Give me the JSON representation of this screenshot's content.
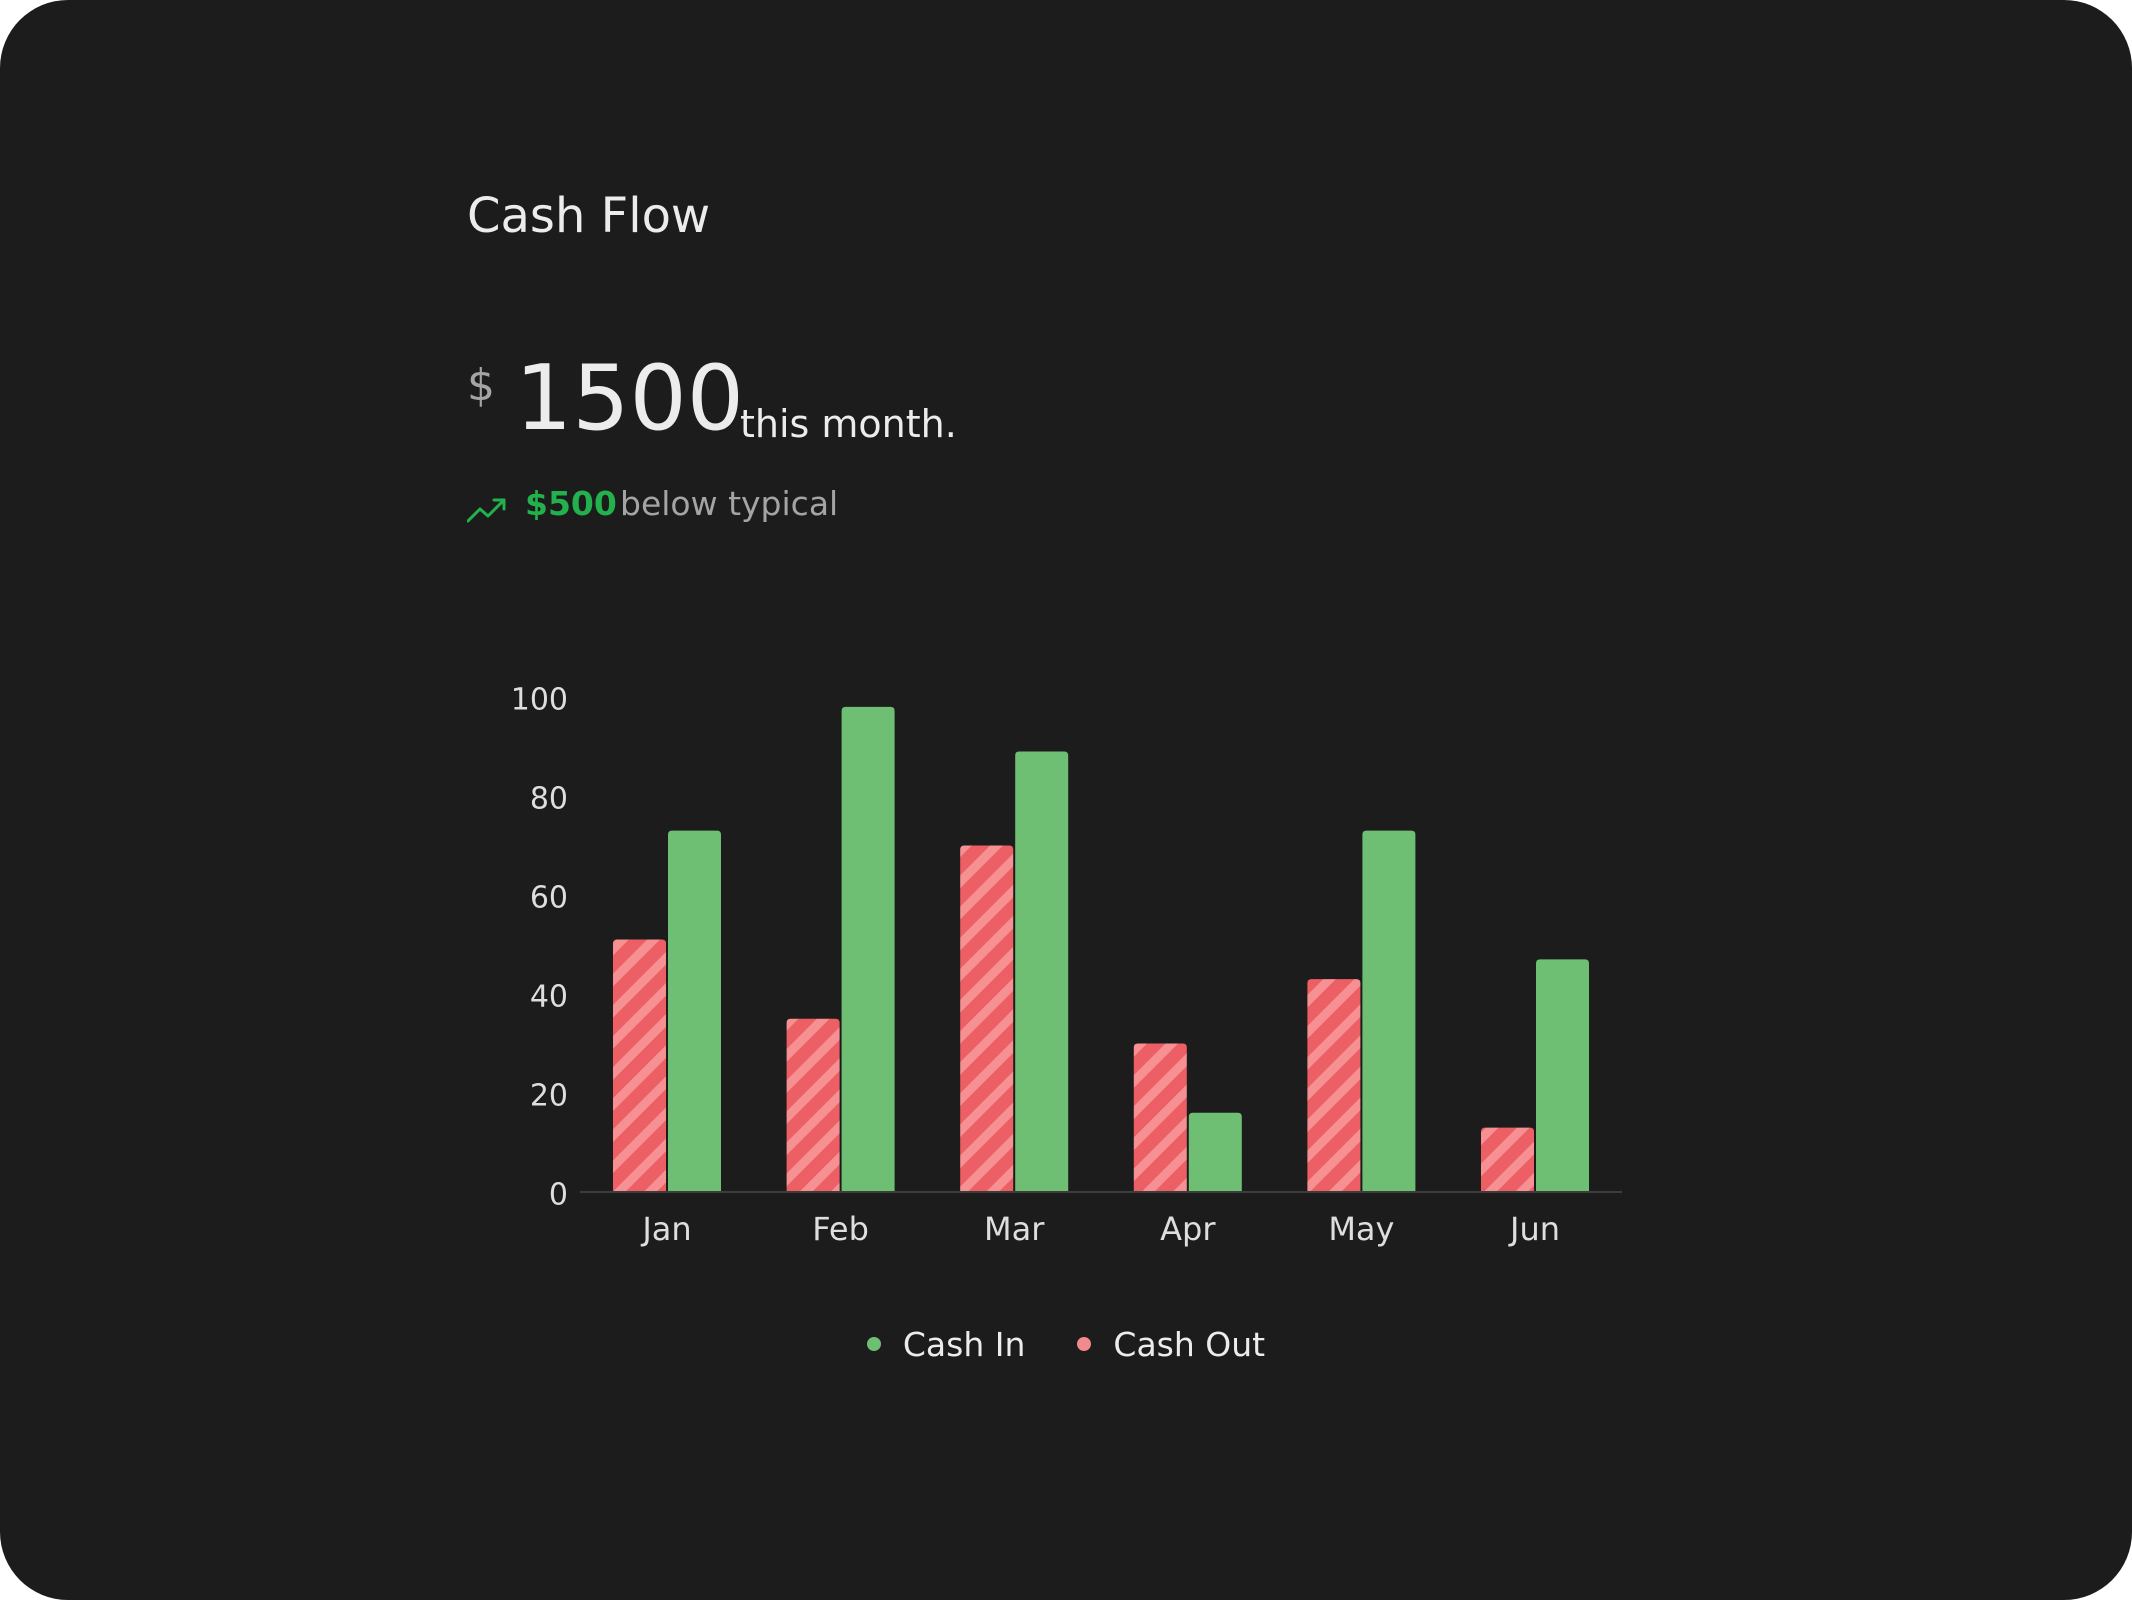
{
  "card": {
    "title": "Cash Flow",
    "currency_symbol": "$",
    "amount": "1500",
    "amount_note": "this month.",
    "delta_value": "$500",
    "delta_note": "below typical",
    "trend_icon": "trending-up-icon"
  },
  "colors": {
    "background": "#1c1c1c",
    "cash_in": "#6ebf74",
    "cash_out": "#eb5f65",
    "cash_out_stripe": "#f79092",
    "positive": "#22b14c",
    "muted_text": "#a4a4a4"
  },
  "chart_data": {
    "type": "bar",
    "categories": [
      "Jan",
      "Feb",
      "Mar",
      "Apr",
      "May",
      "Jun"
    ],
    "series": [
      {
        "name": "Cash Out",
        "values": [
          51,
          35,
          70,
          30,
          43,
          13
        ]
      },
      {
        "name": "Cash In",
        "values": [
          73,
          98,
          89,
          16,
          73,
          47
        ]
      }
    ],
    "ylim": [
      0,
      100
    ],
    "yticks": [
      "0",
      "20",
      "40",
      "60",
      "80",
      "100"
    ],
    "grid": false,
    "legend": [
      "Cash In",
      "Cash Out"
    ],
    "legend_position": "bottom-center"
  }
}
